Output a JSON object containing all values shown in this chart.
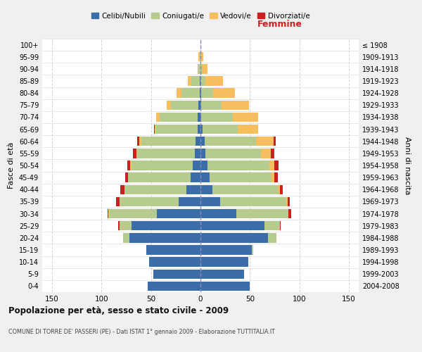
{
  "age_groups": [
    "100+",
    "95-99",
    "90-94",
    "85-89",
    "80-84",
    "75-79",
    "70-74",
    "65-69",
    "60-64",
    "55-59",
    "50-54",
    "45-49",
    "40-44",
    "35-39",
    "30-34",
    "25-29",
    "20-24",
    "15-19",
    "10-14",
    "5-9",
    "0-4"
  ],
  "birth_years": [
    "≤ 1908",
    "1909-1913",
    "1914-1918",
    "1919-1923",
    "1924-1928",
    "1929-1933",
    "1934-1938",
    "1939-1943",
    "1944-1948",
    "1949-1953",
    "1954-1958",
    "1959-1963",
    "1964-1968",
    "1969-1973",
    "1974-1978",
    "1979-1983",
    "1984-1988",
    "1989-1993",
    "1994-1998",
    "1999-2003",
    "2004-2008"
  ],
  "male": {
    "celibi": [
      0,
      0,
      0,
      1,
      1,
      2,
      3,
      3,
      5,
      6,
      8,
      10,
      14,
      22,
      44,
      70,
      72,
      55,
      52,
      48,
      53
    ],
    "coniugati": [
      0,
      1,
      2,
      8,
      18,
      28,
      38,
      42,
      55,
      58,
      62,
      63,
      63,
      60,
      48,
      12,
      6,
      0,
      0,
      0,
      0
    ],
    "vedovi": [
      0,
      1,
      1,
      4,
      5,
      4,
      4,
      1,
      2,
      1,
      1,
      0,
      0,
      0,
      1,
      0,
      0,
      0,
      0,
      0,
      0
    ],
    "divorziati": [
      0,
      0,
      0,
      0,
      0,
      0,
      0,
      1,
      2,
      3,
      3,
      3,
      4,
      3,
      1,
      1,
      0,
      0,
      0,
      0,
      0
    ]
  },
  "female": {
    "nubili": [
      0,
      0,
      0,
      0,
      1,
      1,
      1,
      2,
      4,
      5,
      7,
      9,
      12,
      20,
      36,
      65,
      68,
      52,
      48,
      44,
      50
    ],
    "coniugate": [
      0,
      1,
      2,
      5,
      12,
      20,
      32,
      36,
      52,
      56,
      63,
      63,
      67,
      67,
      53,
      15,
      9,
      1,
      0,
      0,
      0
    ],
    "vedove": [
      0,
      2,
      5,
      18,
      22,
      28,
      25,
      20,
      18,
      10,
      5,
      3,
      1,
      1,
      0,
      0,
      0,
      0,
      0,
      0,
      0
    ],
    "divorziate": [
      0,
      0,
      0,
      0,
      0,
      0,
      0,
      0,
      2,
      4,
      4,
      3,
      3,
      2,
      3,
      1,
      0,
      0,
      0,
      0,
      0
    ]
  },
  "color_celibi": "#3b6da8",
  "color_coniugati": "#b5cc8e",
  "color_vedovi": "#f5be5e",
  "color_divorziati": "#cc2020",
  "title": "Popolazione per età, sesso e stato civile - 2009",
  "subtitle": "COMUNE DI TORRE DE' PASSERI (PE) - Dati ISTAT 1° gennaio 2009 - Elaborazione TUTTITALIA.IT",
  "xlabel_right": "Femmine",
  "ylabel_left": "Fasce di età",
  "ylabel_right": "Anni di nascita",
  "xlim": 160,
  "bg_color": "#f0f0f0",
  "plot_bg": "#ffffff",
  "legend_labels": [
    "Celibi/Nubili",
    "Coniugati/e",
    "Vedovi/e",
    "Divorziati/e"
  ]
}
